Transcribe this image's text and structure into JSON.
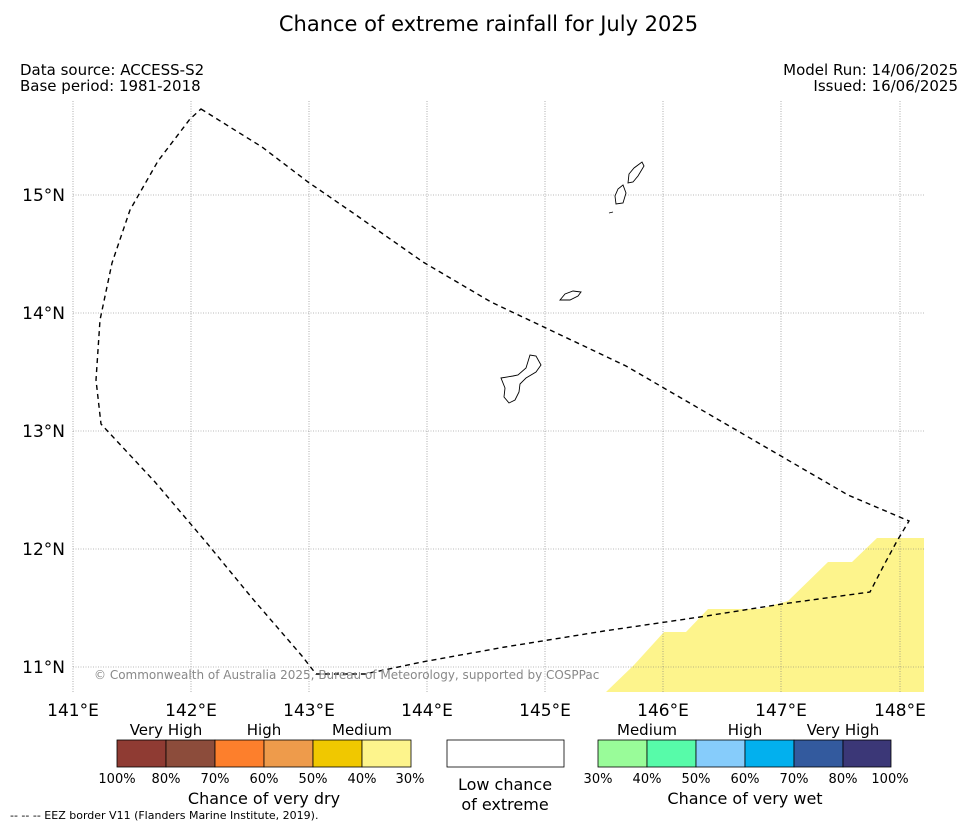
{
  "title": "Chance of extreme rainfall for July 2025",
  "meta": {
    "data_source": "Data source: ACCESS-S2",
    "base_period": "Base period: 1981-2018",
    "model_run": "Model Run: 14/06/2025",
    "issued": "Issued: 16/06/2025"
  },
  "map": {
    "lon_labels": [
      "141°E",
      "142°E",
      "143°E",
      "144°E",
      "145°E",
      "146°E",
      "147°E",
      "148°E"
    ],
    "lat_labels": [
      "11°N",
      "12°N",
      "13°N",
      "14°N",
      "15°N"
    ],
    "copyright": "© Commonwealth of Australia 2025, Bureau of Meteorology, supported by COSPPac",
    "medium_dry_color": "#fdf48c",
    "border_style": "dashed"
  },
  "legend": {
    "dry": {
      "title": "Chance of very dry",
      "categories": [
        "Very High",
        "High",
        "Medium"
      ],
      "colors": [
        "#8f3b33",
        "#8c4c3b",
        "#fd7f2c",
        "#ee9b4b",
        "#f0c800",
        "#fdf48c"
      ],
      "percents": [
        "100%",
        "80%",
        "70%",
        "60%",
        "50%",
        "40%",
        "30%"
      ]
    },
    "neutral": {
      "line1": "Low chance",
      "line2": "of extreme"
    },
    "wet": {
      "title": "Chance of very wet",
      "categories": [
        "Medium",
        "High",
        "Very High"
      ],
      "colors": [
        "#99fc99",
        "#57fba9",
        "#86ccfb",
        "#02b0ee",
        "#335a9e",
        "#3b3777"
      ],
      "percents": [
        "30%",
        "40%",
        "50%",
        "60%",
        "70%",
        "80%",
        "100%"
      ]
    }
  },
  "footnote": "-- -- -- EEZ border V11 (Flanders Marine Institute, 2019)."
}
